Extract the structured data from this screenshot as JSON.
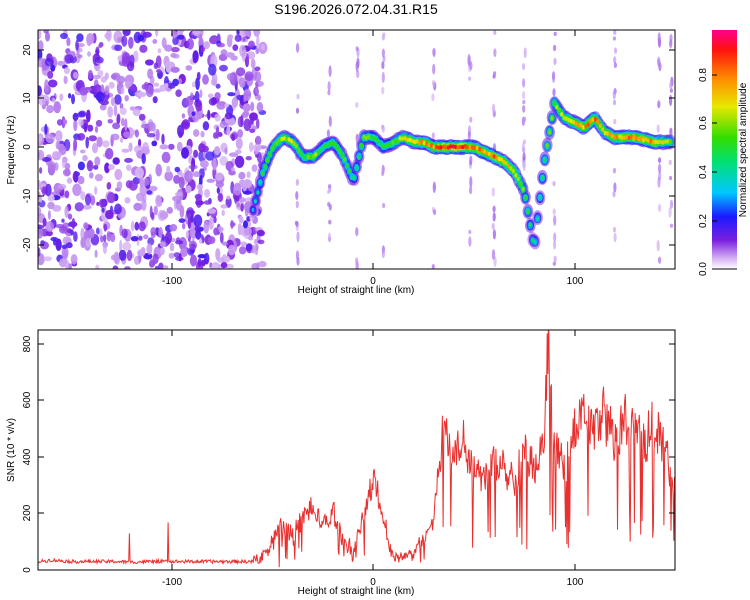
{
  "title": "S196.2026.072.04.31.R15",
  "colors": {
    "snr_line": "#e8302e",
    "axis": "#000000"
  },
  "chart_data": [
    {
      "type": "heatmap",
      "title": "S196.2026.072.04.31.R15",
      "xlabel": "Height of straight line (km)",
      "ylabel": "Frequency (Hz)",
      "xlim": [
        -167,
        150
      ],
      "ylim": [
        -25,
        24
      ],
      "x_ticks": [
        "-100",
        "0",
        "100"
      ],
      "y_ticks": [
        "20",
        "10",
        "0",
        "-10",
        "-20"
      ],
      "colorbar": {
        "label": "Normalized spectral amplitude",
        "range": [
          0.0,
          0.95
        ],
        "ticks": [
          "0.0",
          "0.2",
          "0.4",
          "0.6",
          "0.8"
        ]
      },
      "noise_region_x": [
        -167,
        -60
      ],
      "ridge": {
        "x": [
          -60,
          -55,
          -50,
          -45,
          -40,
          -35,
          -30,
          -25,
          -20,
          -15,
          -10,
          -5,
          0,
          5,
          10,
          15,
          20,
          25,
          30,
          35,
          40,
          45,
          50,
          55,
          60,
          65,
          70,
          75,
          78,
          80,
          82,
          85,
          88,
          90,
          95,
          100,
          105,
          110,
          115,
          120,
          130,
          140,
          148
        ],
        "freq_hz": [
          -13,
          -5,
          0,
          2,
          1,
          -2,
          -2,
          0,
          1,
          -2,
          -7,
          2,
          2,
          0,
          1,
          2,
          1,
          1,
          0,
          0,
          0,
          0,
          0,
          -1,
          -2,
          -3,
          -5,
          -9,
          -16,
          -21,
          -13,
          -3,
          4,
          9,
          6,
          5,
          4,
          6,
          3,
          2,
          2,
          1,
          1
        ],
        "amplitude": [
          0.3,
          0.55,
          0.6,
          0.7,
          0.65,
          0.55,
          0.65,
          0.5,
          0.55,
          0.6,
          0.45,
          0.6,
          0.55,
          0.5,
          0.6,
          0.7,
          0.75,
          0.8,
          0.85,
          0.9,
          0.95,
          0.9,
          0.85,
          0.8,
          0.85,
          0.75,
          0.75,
          0.6,
          0.5,
          0.4,
          0.45,
          0.55,
          0.65,
          0.6,
          0.7,
          0.75,
          0.8,
          0.85,
          0.75,
          0.8,
          0.85,
          0.8,
          0.6
        ]
      }
    },
    {
      "type": "line",
      "xlabel": "Height of straight line (km)",
      "ylabel": "SNR (10 * v/v)",
      "xlim": [
        -167,
        150
      ],
      "ylim": [
        0,
        850
      ],
      "x_ticks": [
        "-100",
        "0",
        "100"
      ],
      "y_ticks": [
        "800",
        "600",
        "400",
        "200",
        "0"
      ],
      "series": [
        {
          "name": "SNR",
          "x": [
            -167,
            -160,
            -150,
            -140,
            -130,
            -120,
            -110,
            -100,
            -90,
            -80,
            -70,
            -60,
            -55,
            -50,
            -45,
            -40,
            -35,
            -30,
            -25,
            -20,
            -15,
            -10,
            -5,
            0,
            5,
            10,
            15,
            20,
            25,
            30,
            32,
            35,
            40,
            45,
            50,
            55,
            60,
            65,
            70,
            75,
            80,
            85,
            87,
            90,
            95,
            100,
            105,
            110,
            115,
            120,
            125,
            130,
            135,
            140,
            145,
            150
          ],
          "y": [
            30,
            35,
            30,
            30,
            30,
            28,
            30,
            30,
            30,
            30,
            30,
            30,
            50,
            110,
            180,
            120,
            200,
            220,
            160,
            210,
            110,
            70,
            180,
            340,
            180,
            40,
            50,
            60,
            120,
            180,
            350,
            530,
            420,
            470,
            380,
            330,
            400,
            380,
            330,
            430,
            360,
            470,
            840,
            470,
            350,
            520,
            560,
            500,
            580,
            460,
            560,
            500,
            480,
            520,
            440,
            300
          ]
        }
      ]
    }
  ]
}
